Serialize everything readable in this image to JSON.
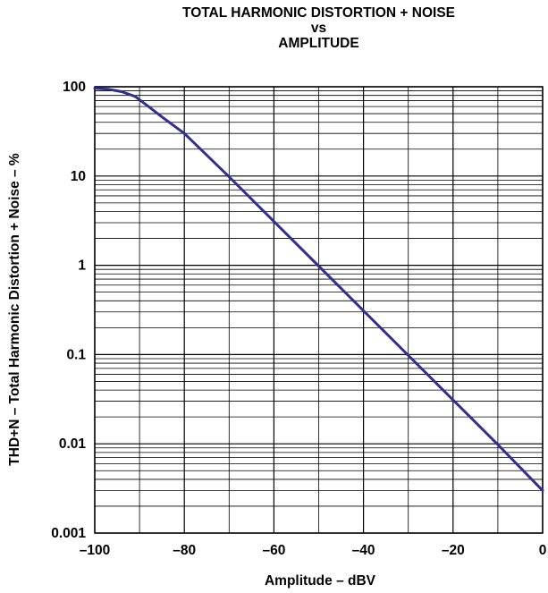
{
  "chart_data": {
    "type": "line",
    "title": [
      "TOTAL HARMONIC DISTORTION + NOISE",
      "vs",
      "AMPLITUDE"
    ],
    "xlabel": "Amplitude – dBV",
    "ylabel": "THD+N – Total Harmonic Distortion + Noise – %",
    "xlim": [
      -100,
      0
    ],
    "ylim": [
      0.001,
      100
    ],
    "yscale": "log",
    "grid": true,
    "x_ticks": [
      -100,
      -80,
      -60,
      -40,
      -20,
      0
    ],
    "x_tick_labels": [
      "–100",
      "–80",
      "–60",
      "–40",
      "–20",
      "0"
    ],
    "y_ticks": [
      100,
      10,
      1,
      0.1,
      0.01,
      0.001
    ],
    "y_tick_labels": [
      "100",
      "10",
      "1",
      "0.1",
      "0.01",
      "0.001"
    ],
    "series": [
      {
        "color": "#2e3192",
        "x": [
          -100,
          -97,
          -94,
          -91,
          -88,
          -85,
          -80,
          -70,
          -60,
          -50,
          -40,
          -30,
          -20,
          -10,
          0
        ],
        "y": [
          96,
          94,
          88,
          78,
          60,
          46,
          30,
          9.8,
          3.1,
          0.98,
          0.31,
          0.098,
          0.031,
          0.0098,
          0.003
        ]
      }
    ]
  }
}
